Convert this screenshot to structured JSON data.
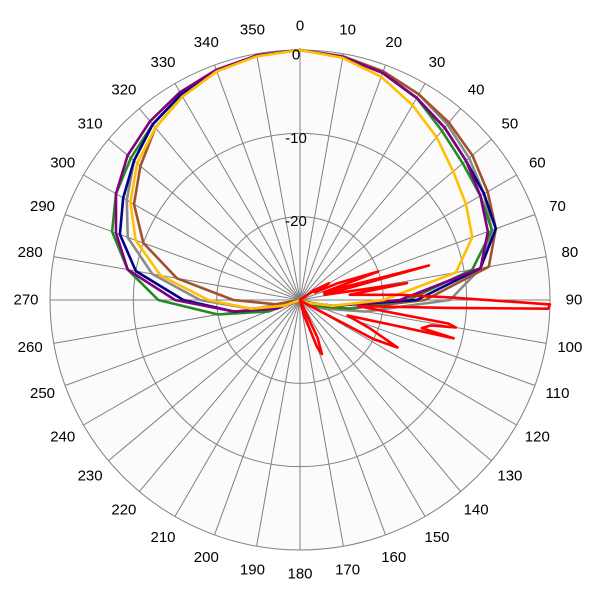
{
  "chart_data": {
    "type": "polar-line",
    "angle_ticks": [
      0,
      10,
      20,
      30,
      40,
      50,
      60,
      70,
      80,
      90,
      100,
      110,
      120,
      130,
      140,
      150,
      160,
      170,
      180,
      190,
      200,
      210,
      220,
      230,
      240,
      250,
      260,
      270,
      280,
      290,
      300,
      310,
      320,
      330,
      340,
      350
    ],
    "angle_labels": [
      "0",
      "10",
      "20",
      "30",
      "40",
      "50",
      "60",
      "70",
      "80",
      "90",
      "100",
      "110",
      "120",
      "130",
      "140",
      "150",
      "160",
      "170",
      "180",
      "190",
      "200",
      "210",
      "220",
      "230",
      "240",
      "250",
      "260",
      "270",
      "280",
      "290",
      "300",
      "310",
      "320",
      "330",
      "340",
      "350"
    ],
    "radial_range": [
      -30,
      0
    ],
    "radial_gridlines": [
      0,
      -10,
      -20,
      -30
    ],
    "radial_labels": [
      "0",
      "-10",
      "-20"
    ],
    "grid": true,
    "series": [
      {
        "color": "#8a8a8a",
        "points": [
          [
            0,
            0
          ],
          [
            10,
            -0.3
          ],
          [
            20,
            -0.8
          ],
          [
            30,
            -1.5
          ],
          [
            40,
            -2.5
          ],
          [
            50,
            -3.5
          ],
          [
            60,
            -4.5
          ],
          [
            70,
            -5.5
          ],
          [
            80,
            -8
          ],
          [
            90,
            -12
          ],
          [
            100,
            -22
          ],
          [
            110,
            -27
          ],
          [
            120,
            -29
          ],
          [
            150,
            -30
          ],
          [
            180,
            -30
          ],
          [
            210,
            -30
          ],
          [
            240,
            -30
          ],
          [
            250,
            -28
          ],
          [
            260,
            -24
          ],
          [
            270,
            -18
          ],
          [
            280,
            -12
          ],
          [
            290,
            -8
          ],
          [
            300,
            -6
          ],
          [
            310,
            -4
          ],
          [
            320,
            -2.5
          ],
          [
            330,
            -1.5
          ],
          [
            340,
            -0.7
          ],
          [
            350,
            -0.2
          ],
          [
            360,
            0
          ]
        ]
      },
      {
        "color": "#a0522d",
        "points": [
          [
            0,
            0
          ],
          [
            10,
            -0.3
          ],
          [
            20,
            -0.8
          ],
          [
            30,
            -1.5
          ],
          [
            40,
            -2.2
          ],
          [
            50,
            -3
          ],
          [
            60,
            -4
          ],
          [
            70,
            -5
          ],
          [
            80,
            -7
          ],
          [
            90,
            -15
          ],
          [
            100,
            -24
          ],
          [
            110,
            -28
          ],
          [
            120,
            -30
          ],
          [
            240,
            -30
          ],
          [
            260,
            -27
          ],
          [
            270,
            -22
          ],
          [
            280,
            -15
          ],
          [
            290,
            -10
          ],
          [
            300,
            -7
          ],
          [
            310,
            -5
          ],
          [
            320,
            -3
          ],
          [
            330,
            -1.8
          ],
          [
            340,
            -0.8
          ],
          [
            350,
            -0.2
          ],
          [
            360,
            0
          ]
        ]
      },
      {
        "color": "#228b22",
        "points": [
          [
            0,
            0
          ],
          [
            10,
            -0.4
          ],
          [
            20,
            -1
          ],
          [
            30,
            -2
          ],
          [
            40,
            -3.5
          ],
          [
            50,
            -4.5
          ],
          [
            60,
            -5
          ],
          [
            70,
            -5.5
          ],
          [
            80,
            -9
          ],
          [
            90,
            -17
          ],
          [
            100,
            -24
          ],
          [
            110,
            -28
          ],
          [
            120,
            -30
          ],
          [
            240,
            -30
          ],
          [
            250,
            -26
          ],
          [
            260,
            -20
          ],
          [
            270,
            -13
          ],
          [
            280,
            -9
          ],
          [
            290,
            -6
          ],
          [
            300,
            -4.5
          ],
          [
            310,
            -3.5
          ],
          [
            320,
            -2.5
          ],
          [
            330,
            -1.5
          ],
          [
            340,
            -0.7
          ],
          [
            350,
            -0.2
          ],
          [
            360,
            0
          ]
        ]
      },
      {
        "color": "#00008b",
        "points": [
          [
            0,
            0
          ],
          [
            10,
            -0.4
          ],
          [
            20,
            -1
          ],
          [
            30,
            -2
          ],
          [
            40,
            -3
          ],
          [
            50,
            -4
          ],
          [
            60,
            -4.5
          ],
          [
            70,
            -5
          ],
          [
            80,
            -8
          ],
          [
            90,
            -16
          ],
          [
            100,
            -26
          ],
          [
            110,
            -29
          ],
          [
            120,
            -30
          ],
          [
            240,
            -30
          ],
          [
            250,
            -27
          ],
          [
            260,
            -22
          ],
          [
            270,
            -16
          ],
          [
            280,
            -10
          ],
          [
            290,
            -7
          ],
          [
            300,
            -5.5
          ],
          [
            310,
            -4
          ],
          [
            320,
            -2.5
          ],
          [
            330,
            -1.5
          ],
          [
            340,
            -0.7
          ],
          [
            350,
            -0.2
          ],
          [
            360,
            0
          ]
        ]
      },
      {
        "color": "#800080",
        "points": [
          [
            0,
            0
          ],
          [
            10,
            -0.4
          ],
          [
            20,
            -1
          ],
          [
            30,
            -2
          ],
          [
            40,
            -3
          ],
          [
            50,
            -4
          ],
          [
            60,
            -5
          ],
          [
            70,
            -6
          ],
          [
            80,
            -8
          ],
          [
            90,
            -18
          ],
          [
            100,
            -26
          ],
          [
            110,
            -29
          ],
          [
            120,
            -30
          ],
          [
            240,
            -30
          ],
          [
            250,
            -27
          ],
          [
            260,
            -22
          ],
          [
            270,
            -15
          ],
          [
            280,
            -9
          ],
          [
            290,
            -6.5
          ],
          [
            300,
            -4.5
          ],
          [
            310,
            -3
          ],
          [
            320,
            -2
          ],
          [
            330,
            -1.2
          ],
          [
            340,
            -0.6
          ],
          [
            350,
            -0.2
          ],
          [
            360,
            0
          ]
        ]
      },
      {
        "color": "#ffc000",
        "points": [
          [
            0,
            0
          ],
          [
            10,
            -0.5
          ],
          [
            20,
            -1.5
          ],
          [
            30,
            -3
          ],
          [
            40,
            -4.5
          ],
          [
            50,
            -6
          ],
          [
            60,
            -7
          ],
          [
            70,
            -8
          ],
          [
            80,
            -11
          ],
          [
            90,
            -20
          ],
          [
            100,
            -26
          ],
          [
            110,
            -29
          ],
          [
            120,
            -30
          ],
          [
            240,
            -30
          ],
          [
            250,
            -28
          ],
          [
            260,
            -24
          ],
          [
            270,
            -19
          ],
          [
            280,
            -13
          ],
          [
            290,
            -9
          ],
          [
            300,
            -6.5
          ],
          [
            310,
            -4.5
          ],
          [
            320,
            -3
          ],
          [
            330,
            -1.8
          ],
          [
            340,
            -0.8
          ],
          [
            350,
            -0.3
          ],
          [
            360,
            0
          ]
        ]
      },
      {
        "color": "#ff0000",
        "points": [
          [
            0,
            -30
          ],
          [
            40,
            -30
          ],
          [
            55,
            -28
          ],
          [
            60,
            -26
          ],
          [
            63,
            -28
          ],
          [
            66,
            -25
          ],
          [
            70,
            -20
          ],
          [
            72,
            -27
          ],
          [
            75,
            -14
          ],
          [
            78,
            -27
          ],
          [
            81,
            -17
          ],
          [
            84,
            -24
          ],
          [
            87,
            -18
          ],
          [
            89,
            -12
          ],
          [
            91,
            0
          ],
          [
            92,
            -0.2
          ],
          [
            93,
            -12
          ],
          [
            96,
            -23
          ],
          [
            99,
            -12
          ],
          [
            100,
            -11
          ],
          [
            101,
            -14
          ],
          [
            103,
            -15
          ],
          [
            104,
            -11
          ],
          [
            105,
            -18
          ],
          [
            108,
            -24
          ],
          [
            112,
            -21
          ],
          [
            116,
            -17
          ],
          [
            118,
            -20
          ],
          [
            121,
            -29
          ],
          [
            140,
            -30
          ],
          [
            155,
            -25
          ],
          [
            158,
            -23
          ],
          [
            160,
            -24
          ],
          [
            165,
            -28
          ],
          [
            170,
            -30
          ],
          [
            360,
            -30
          ]
        ]
      }
    ]
  }
}
